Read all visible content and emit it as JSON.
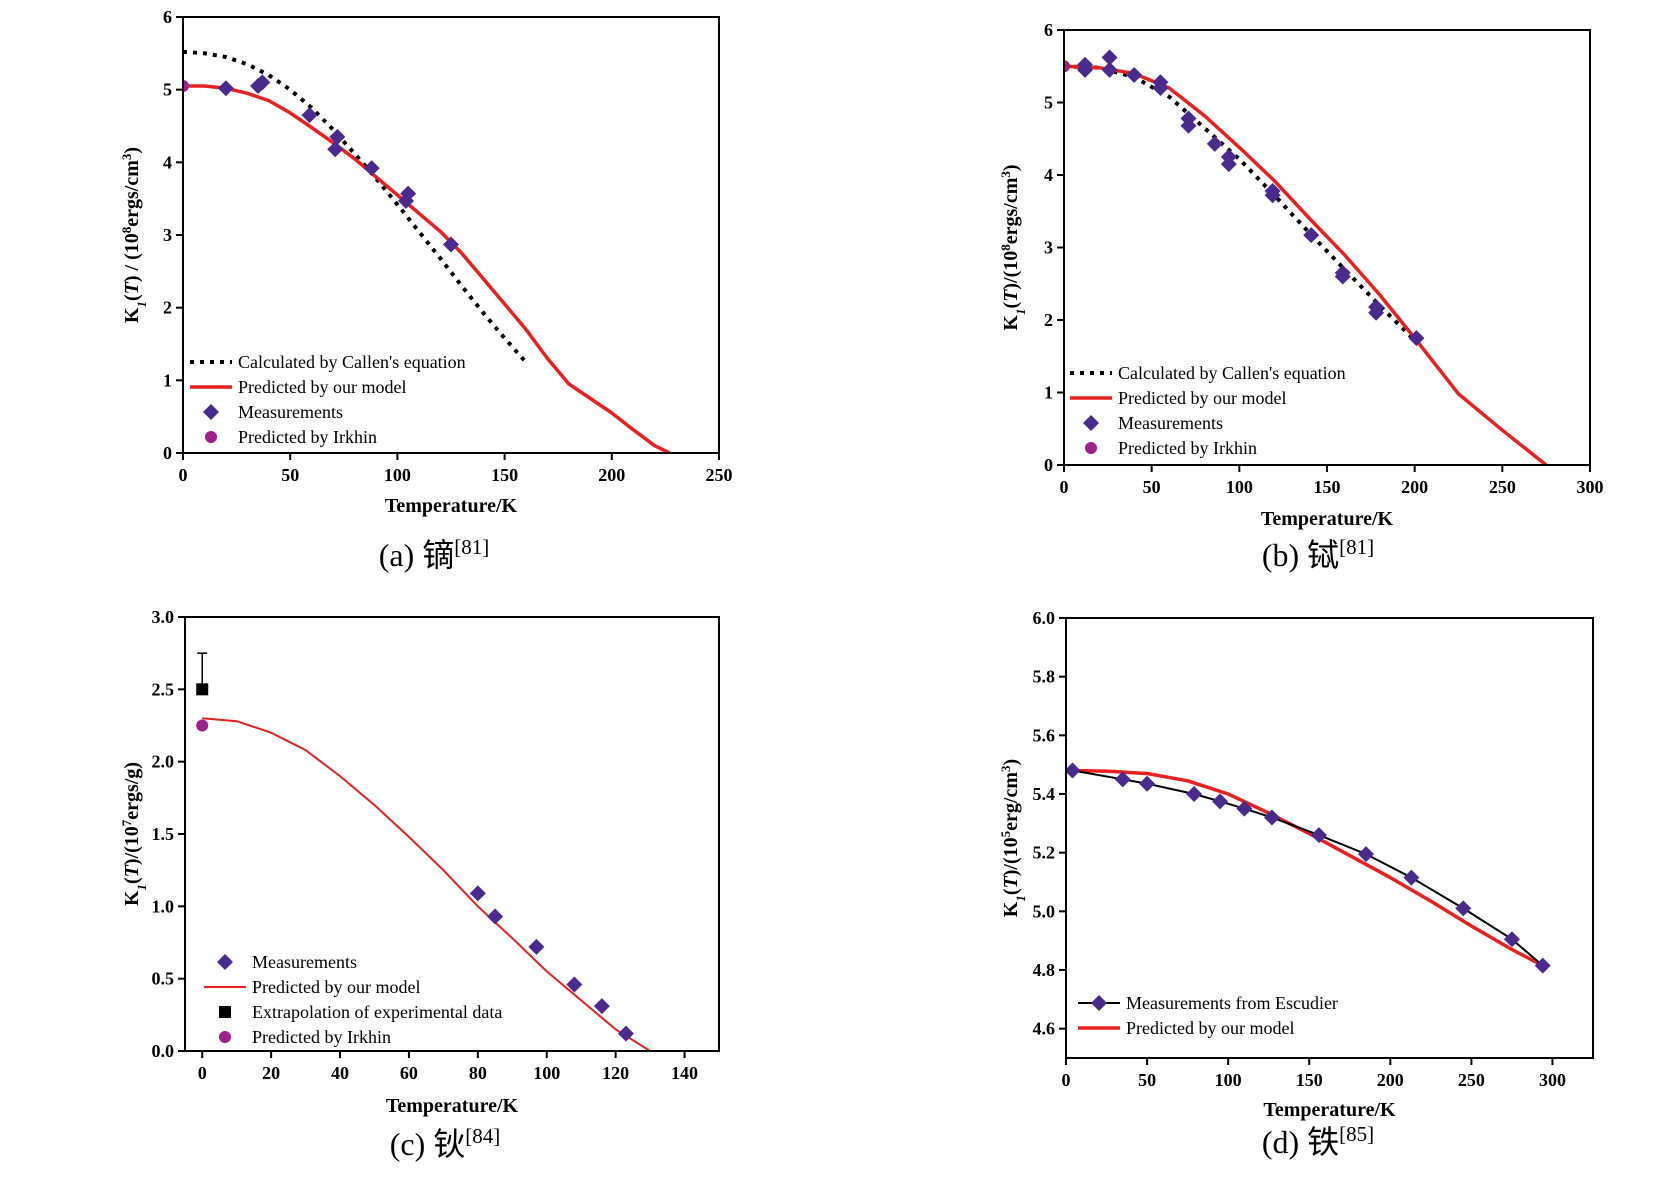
{
  "colors": {
    "model": "#e8201e",
    "callen": "#000000",
    "measurement": "#4b2a8f",
    "irkhin": "#a0208d",
    "extrapolation": "#000000",
    "escudier_line": "#000000"
  },
  "panels": [
    {
      "id": "a",
      "caption": {
        "prefix": "(a)",
        "name": "镝",
        "ref": "[81]"
      },
      "xlabel": "Temperature/K",
      "ylabel_html": "K<tspan font-style='italic' baseline-shift='sub' font-size='13'>1</tspan>(<tspan font-style='italic'>T</tspan>) / (10<tspan baseline-shift='super' font-size='13'>8</tspan>ergs/cm<tspan baseline-shift='super' font-size='13'>3</tspan>)",
      "xlim": [
        0,
        250
      ],
      "ylim": [
        0,
        6
      ],
      "xticks": [
        0,
        50,
        100,
        150,
        200,
        250
      ],
      "yticks": [
        0,
        1,
        2,
        3,
        4,
        5,
        6
      ],
      "legend": [
        {
          "label": "Calculated by Callen's equation",
          "kind": "dotted"
        },
        {
          "label": "Predicted by our model",
          "kind": "line"
        },
        {
          "label": "Measurements",
          "kind": "diamond"
        },
        {
          "label": "Predicted by Irkhin",
          "kind": "circle"
        }
      ]
    },
    {
      "id": "b",
      "caption": {
        "prefix": "(b)",
        "name": "铽",
        "ref": "[81]"
      },
      "xlabel": "Temperature/K",
      "ylabel_html": "K<tspan font-style='italic' baseline-shift='sub' font-size='13'>1</tspan>(<tspan font-style='italic'>T</tspan>)/(10<tspan baseline-shift='super' font-size='13'>8</tspan>ergs/cm<tspan baseline-shift='super' font-size='13'>3</tspan>)",
      "xlim": [
        0,
        300
      ],
      "ylim": [
        0,
        6
      ],
      "xticks": [
        0,
        50,
        100,
        150,
        200,
        250,
        300
      ],
      "yticks": [
        0,
        1,
        2,
        3,
        4,
        5,
        6
      ],
      "legend": [
        {
          "label": "Calculated by Callen's equation",
          "kind": "dotted"
        },
        {
          "label": "Predicted by our model",
          "kind": "line"
        },
        {
          "label": "Measurements",
          "kind": "diamond"
        },
        {
          "label": "Predicted by Irkhin",
          "kind": "circle"
        }
      ]
    },
    {
      "id": "c",
      "caption": {
        "prefix": "(c)",
        "name": "钬",
        "ref": "[84]"
      },
      "xlabel": "Temperature/K",
      "ylabel_html": "K<tspan font-style='italic' baseline-shift='sub' font-size='13'>1</tspan>(<tspan font-style='italic'>T</tspan>)/(10<tspan baseline-shift='super' font-size='13'>7</tspan>ergs/g)",
      "xlim": [
        -5,
        150
      ],
      "ylim": [
        0,
        3
      ],
      "xticks": [
        0,
        20,
        40,
        60,
        80,
        100,
        120,
        140
      ],
      "yticks": [
        0.0,
        0.5,
        1.0,
        1.5,
        2.0,
        2.5,
        3.0
      ],
      "yfmt": 1,
      "legend": [
        {
          "label": "Measurements",
          "kind": "diamond"
        },
        {
          "label": "Predicted by our model",
          "kind": "thinline"
        },
        {
          "label": "Extrapolation of experimental data",
          "kind": "square"
        },
        {
          "label": "Predicted by Irkhin",
          "kind": "circle"
        }
      ]
    },
    {
      "id": "d",
      "caption": {
        "prefix": "(d)",
        "name": "铁",
        "ref": "[85]"
      },
      "xlabel": "Temperature/K",
      "ylabel_html": "K<tspan font-style='italic' baseline-shift='sub' font-size='13'>1</tspan>(<tspan font-style='italic'>T</tspan>)/(10<tspan baseline-shift='super' font-size='13'>5</tspan>erg/cm<tspan baseline-shift='super' font-size='13'>3</tspan>)",
      "xlim": [
        0,
        325
      ],
      "ylim": [
        4.5,
        6.0
      ],
      "xticks": [
        0,
        50,
        100,
        150,
        200,
        250,
        300
      ],
      "yticks": [
        4.6,
        4.8,
        5.0,
        5.2,
        5.4,
        5.6,
        5.8,
        6.0
      ],
      "yfmt": 1,
      "legend": [
        {
          "label": "Measurements from Escudier",
          "kind": "lined-diamond"
        },
        {
          "label": "Predicted by our model",
          "kind": "line"
        }
      ]
    }
  ],
  "chart_data": [
    {
      "type": "line",
      "panel": "a",
      "xlabel": "Temperature/K",
      "ylabel": "K1(T) / (10^8ergs/cm^3)",
      "xlim": [
        0,
        250
      ],
      "ylim": [
        0,
        6
      ],
      "series": [
        {
          "name": "Calculated by Callen's equation",
          "style": "dotted",
          "x": [
            0,
            10,
            20,
            30,
            40,
            50,
            60,
            70,
            80,
            90,
            100,
            110,
            120,
            130,
            140,
            150,
            160
          ],
          "y": [
            5.52,
            5.5,
            5.45,
            5.35,
            5.2,
            5.0,
            4.75,
            4.45,
            4.12,
            3.78,
            3.42,
            3.05,
            2.68,
            2.3,
            1.93,
            1.58,
            1.25
          ]
        },
        {
          "name": "Predicted by our model",
          "style": "line",
          "x": [
            0,
            10,
            20,
            30,
            40,
            50,
            60,
            70,
            80,
            90,
            100,
            110,
            120,
            130,
            140,
            150,
            160,
            170,
            180,
            190,
            200,
            210,
            220,
            227
          ],
          "y": [
            5.05,
            5.05,
            5.02,
            4.95,
            4.85,
            4.68,
            4.48,
            4.27,
            4.05,
            3.8,
            3.55,
            3.3,
            3.05,
            2.75,
            2.4,
            2.05,
            1.7,
            1.3,
            0.95,
            0.75,
            0.55,
            0.32,
            0.1,
            0.0
          ]
        },
        {
          "name": "Measurements",
          "style": "diamond",
          "x": [
            20,
            35,
            37,
            59,
            71,
            72,
            88,
            104,
            105,
            125
          ],
          "y": [
            5.02,
            5.05,
            5.1,
            4.65,
            4.18,
            4.35,
            3.92,
            3.47,
            3.57,
            2.87
          ]
        },
        {
          "name": "Predicted by Irkhin",
          "style": "circle",
          "x": [
            0
          ],
          "y": [
            5.05
          ]
        }
      ]
    },
    {
      "type": "line",
      "panel": "b",
      "xlabel": "Temperature/K",
      "ylabel": "K1(T)/(10^8ergs/cm^3)",
      "xlim": [
        0,
        300
      ],
      "ylim": [
        0,
        6
      ],
      "series": [
        {
          "name": "Calculated by Callen's equation",
          "style": "dotted",
          "x": [
            0,
            20,
            40,
            60,
            80,
            100,
            120,
            140,
            160,
            180,
            200
          ],
          "y": [
            5.5,
            5.48,
            5.35,
            5.08,
            4.65,
            4.22,
            3.72,
            3.2,
            2.7,
            2.2,
            1.72
          ]
        },
        {
          "name": "Predicted by our model",
          "style": "line",
          "x": [
            0,
            20,
            40,
            60,
            80,
            100,
            120,
            140,
            160,
            180,
            200,
            225,
            250,
            275
          ],
          "y": [
            5.5,
            5.48,
            5.4,
            5.2,
            4.82,
            4.38,
            3.92,
            3.4,
            2.9,
            2.35,
            1.75,
            0.98,
            0.48,
            0.0
          ]
        },
        {
          "name": "Measurements",
          "style": "diamond",
          "x": [
            12,
            12,
            26,
            26,
            40,
            55,
            55,
            71,
            71,
            86,
            94,
            94,
            119,
            119,
            141,
            159,
            159,
            178,
            178,
            201
          ],
          "y": [
            5.45,
            5.52,
            5.45,
            5.62,
            5.38,
            5.2,
            5.28,
            4.68,
            4.78,
            4.43,
            4.15,
            4.25,
            3.72,
            3.78,
            3.17,
            2.6,
            2.65,
            2.1,
            2.18,
            1.75
          ]
        },
        {
          "name": "Predicted by Irkhin",
          "style": "circle",
          "x": [
            0
          ],
          "y": [
            5.5
          ]
        }
      ]
    },
    {
      "type": "line",
      "panel": "c",
      "xlabel": "Temperature/K",
      "ylabel": "K1(T)/(10^7ergs/g)",
      "xlim": [
        -5,
        150
      ],
      "ylim": [
        0,
        3
      ],
      "series": [
        {
          "name": "Measurements",
          "style": "diamond",
          "x": [
            80,
            85,
            97,
            108,
            116,
            123
          ],
          "y": [
            1.09,
            0.93,
            0.72,
            0.46,
            0.31,
            0.12
          ]
        },
        {
          "name": "Predicted by our model",
          "style": "thinline",
          "x": [
            0,
            10,
            20,
            30,
            40,
            50,
            60,
            70,
            80,
            90,
            100,
            110,
            120,
            130
          ],
          "y": [
            2.3,
            2.28,
            2.2,
            2.08,
            1.9,
            1.7,
            1.48,
            1.25,
            1.0,
            0.78,
            0.55,
            0.35,
            0.15,
            0.0
          ]
        },
        {
          "name": "Extrapolation of experimental data",
          "style": "square",
          "x": [
            0
          ],
          "y": [
            2.5
          ],
          "error_upper": [
            0.25
          ]
        },
        {
          "name": "Predicted by Irkhin",
          "style": "circle",
          "x": [
            0
          ],
          "y": [
            2.25
          ]
        }
      ]
    },
    {
      "type": "line",
      "panel": "d",
      "xlabel": "Temperature/K",
      "ylabel": "K1(T)/(10^5erg/cm^3)",
      "xlim": [
        0,
        325
      ],
      "ylim": [
        4.5,
        6.0
      ],
      "series": [
        {
          "name": "Measurements from Escudier",
          "style": "lined-diamond",
          "x": [
            4,
            35,
            50,
            79,
            95,
            110,
            127,
            156,
            185,
            213,
            245,
            275,
            294
          ],
          "y": [
            5.48,
            5.45,
            5.435,
            5.4,
            5.375,
            5.35,
            5.32,
            5.26,
            5.195,
            5.115,
            5.01,
            4.905,
            4.815
          ]
        },
        {
          "name": "Predicted by our model",
          "style": "line",
          "x": [
            0,
            25,
            50,
            75,
            100,
            125,
            150,
            175,
            200,
            225,
            250,
            275,
            294
          ],
          "y": [
            5.48,
            5.478,
            5.47,
            5.445,
            5.4,
            5.335,
            5.265,
            5.19,
            5.115,
            5.035,
            4.95,
            4.87,
            4.815
          ]
        }
      ]
    }
  ]
}
